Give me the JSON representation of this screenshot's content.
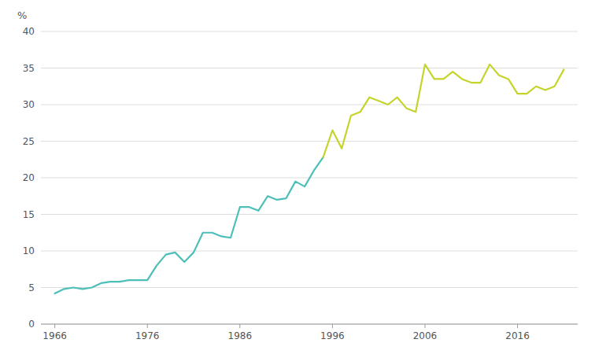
{
  "chart_data": {
    "type": "line",
    "y_label": "%",
    "x": [
      1966,
      1967,
      1968,
      1969,
      1970,
      1971,
      1972,
      1973,
      1974,
      1975,
      1976,
      1977,
      1978,
      1979,
      1980,
      1981,
      1982,
      1983,
      1984,
      1985,
      1986,
      1987,
      1988,
      1989,
      1990,
      1991,
      1992,
      1993,
      1994,
      1995,
      1996,
      1997,
      1998,
      1999,
      2000,
      2001,
      2002,
      2003,
      2004,
      2005,
      2006,
      2007,
      2008,
      2009,
      2010,
      2011,
      2012,
      2013,
      2014,
      2015,
      2016,
      2017,
      2018,
      2019,
      2020,
      2021
    ],
    "series": [
      {
        "color": "#4dbfb8",
        "values": [
          4.2,
          4.8,
          5.0,
          4.8,
          5.0,
          5.6,
          5.8,
          5.8,
          6.0,
          6.0,
          6.0,
          8.0,
          9.5,
          9.8,
          8.5,
          9.8,
          12.5,
          12.5,
          12.0,
          11.8,
          16.0,
          16.0,
          15.5,
          17.5,
          17.0,
          17.2,
          19.5,
          18.8,
          21.0,
          22.8,
          null,
          null,
          null,
          null,
          null,
          null,
          null,
          null,
          null,
          null,
          null,
          null,
          null,
          null,
          null,
          null,
          null,
          null,
          null,
          null,
          null,
          null,
          null,
          null,
          null,
          null
        ]
      },
      {
        "color": "#c5d42b",
        "values": [
          null,
          null,
          null,
          null,
          null,
          null,
          null,
          null,
          null,
          null,
          null,
          null,
          null,
          null,
          null,
          null,
          null,
          null,
          null,
          null,
          null,
          null,
          null,
          null,
          null,
          null,
          null,
          null,
          null,
          22.8,
          26.5,
          24.0,
          28.5,
          29.0,
          31.0,
          30.5,
          30.0,
          31.0,
          29.5,
          29.0,
          35.5,
          33.5,
          33.5,
          34.5,
          33.5,
          33.0,
          33.0,
          35.5,
          34.0,
          33.5,
          31.5,
          31.5,
          32.5,
          32.0,
          32.5,
          34.8
        ]
      }
    ],
    "xlim": [
      1964.5,
      2022.5
    ],
    "xticks": [
      1966,
      1976,
      1986,
      1996,
      2006,
      2016
    ],
    "ylim": [
      0,
      40
    ],
    "yticks": [
      0,
      5,
      10,
      15,
      20,
      25,
      30,
      35,
      40
    ],
    "grid": "y"
  }
}
